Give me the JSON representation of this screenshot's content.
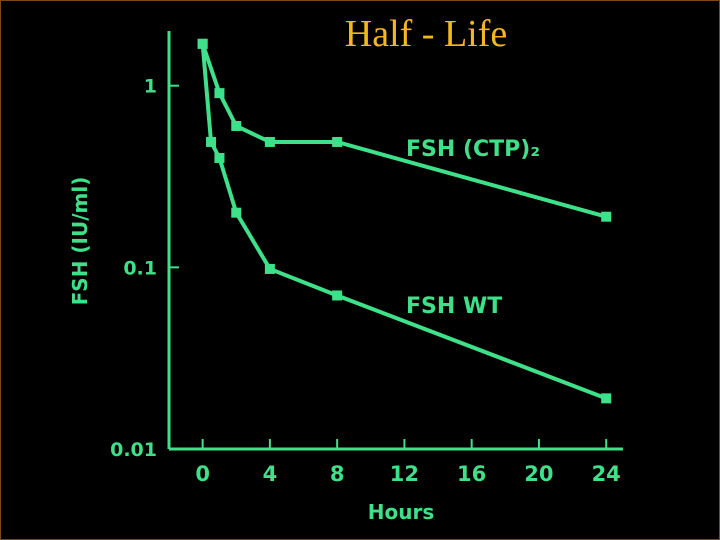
{
  "chart_data": {
    "type": "line",
    "title": "Half - Life",
    "xlabel": "Hours",
    "ylabel": "FSH (IU/ml)",
    "xlim": [
      -2,
      25
    ],
    "xticks": [
      0,
      4,
      8,
      12,
      16,
      20,
      24
    ],
    "ylim": [
      0.01,
      2
    ],
    "yticks": [
      0.01,
      0.1,
      1
    ],
    "ylog": true,
    "series": [
      {
        "name": "FSH (CTP)₂",
        "color": "#3fe08a",
        "x": [
          0,
          1,
          2,
          4,
          8,
          24
        ],
        "values": [
          1.7,
          0.91,
          0.6,
          0.49,
          0.49,
          0.19
        ]
      },
      {
        "name": "FSH WT",
        "color": "#3fe08a",
        "x": [
          0,
          0.5,
          1,
          2,
          4,
          8,
          24
        ],
        "values": [
          1.7,
          0.49,
          0.4,
          0.2,
          0.098,
          0.07,
          0.019
        ]
      }
    ]
  }
}
